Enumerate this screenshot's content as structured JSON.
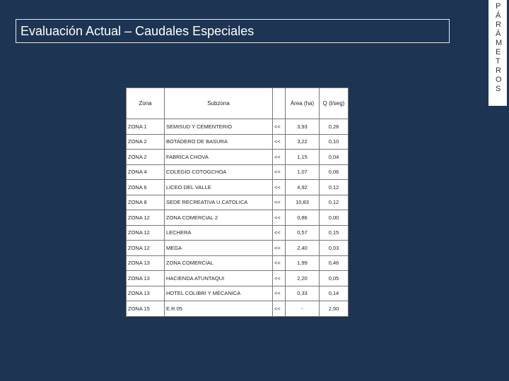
{
  "title": "Evaluación Actual – Caudales Especiales",
  "side_label": "PÁRÁMETROS",
  "table": {
    "header": {
      "zone": "Zona",
      "subzone": "Subzona",
      "area": "Área (ha)",
      "q": "Q (l/seg)"
    },
    "rows": [
      [
        "ZONA 1",
        "SEMISUD Y CEMENTERIO",
        "<<",
        "3,93",
        "0,28"
      ],
      [
        "ZONA 2",
        "BOTADERO DE BASURA",
        "<<",
        "3,22",
        "0,10"
      ],
      [
        "ZONA 2",
        "FABRICA CHOVA",
        "<<",
        "1,15",
        "0,04"
      ],
      [
        "ZONA 4",
        "COLEGIO COTOGCHOA",
        "<<",
        "1,07",
        "0,06"
      ],
      [
        "ZONA 6",
        "LICEO DEL VALLE",
        "<<",
        "4,92",
        "0,12"
      ],
      [
        "ZONA 8",
        "SEDE RECREATIVA U.CATOLICA",
        "<<",
        "10,83",
        "0,12"
      ],
      [
        "ZONA 12",
        "ZONA COMERCIAL 2",
        "<<",
        "0,86",
        "0,00"
      ],
      [
        "ZONA 12",
        "LECHERA",
        "<<",
        "0,57",
        "0,15"
      ],
      [
        "ZONA 12",
        "MEGA",
        "<<",
        "2,40",
        "0,03"
      ],
      [
        "ZONA 13",
        "ZONA COMERCIAL",
        "<<",
        "1,99",
        "0,46"
      ],
      [
        "ZONA 13",
        "HACIENDA ATUNTAQUI",
        "<<",
        "2,20",
        "0,05"
      ],
      [
        "ZONA 13",
        "HOTEL COLIBRI Y MECANICA",
        "<<",
        "0,33",
        "0,14"
      ],
      [
        "ZONA 15",
        "E.R.05",
        "<<",
        "-",
        "2,50"
      ]
    ]
  }
}
